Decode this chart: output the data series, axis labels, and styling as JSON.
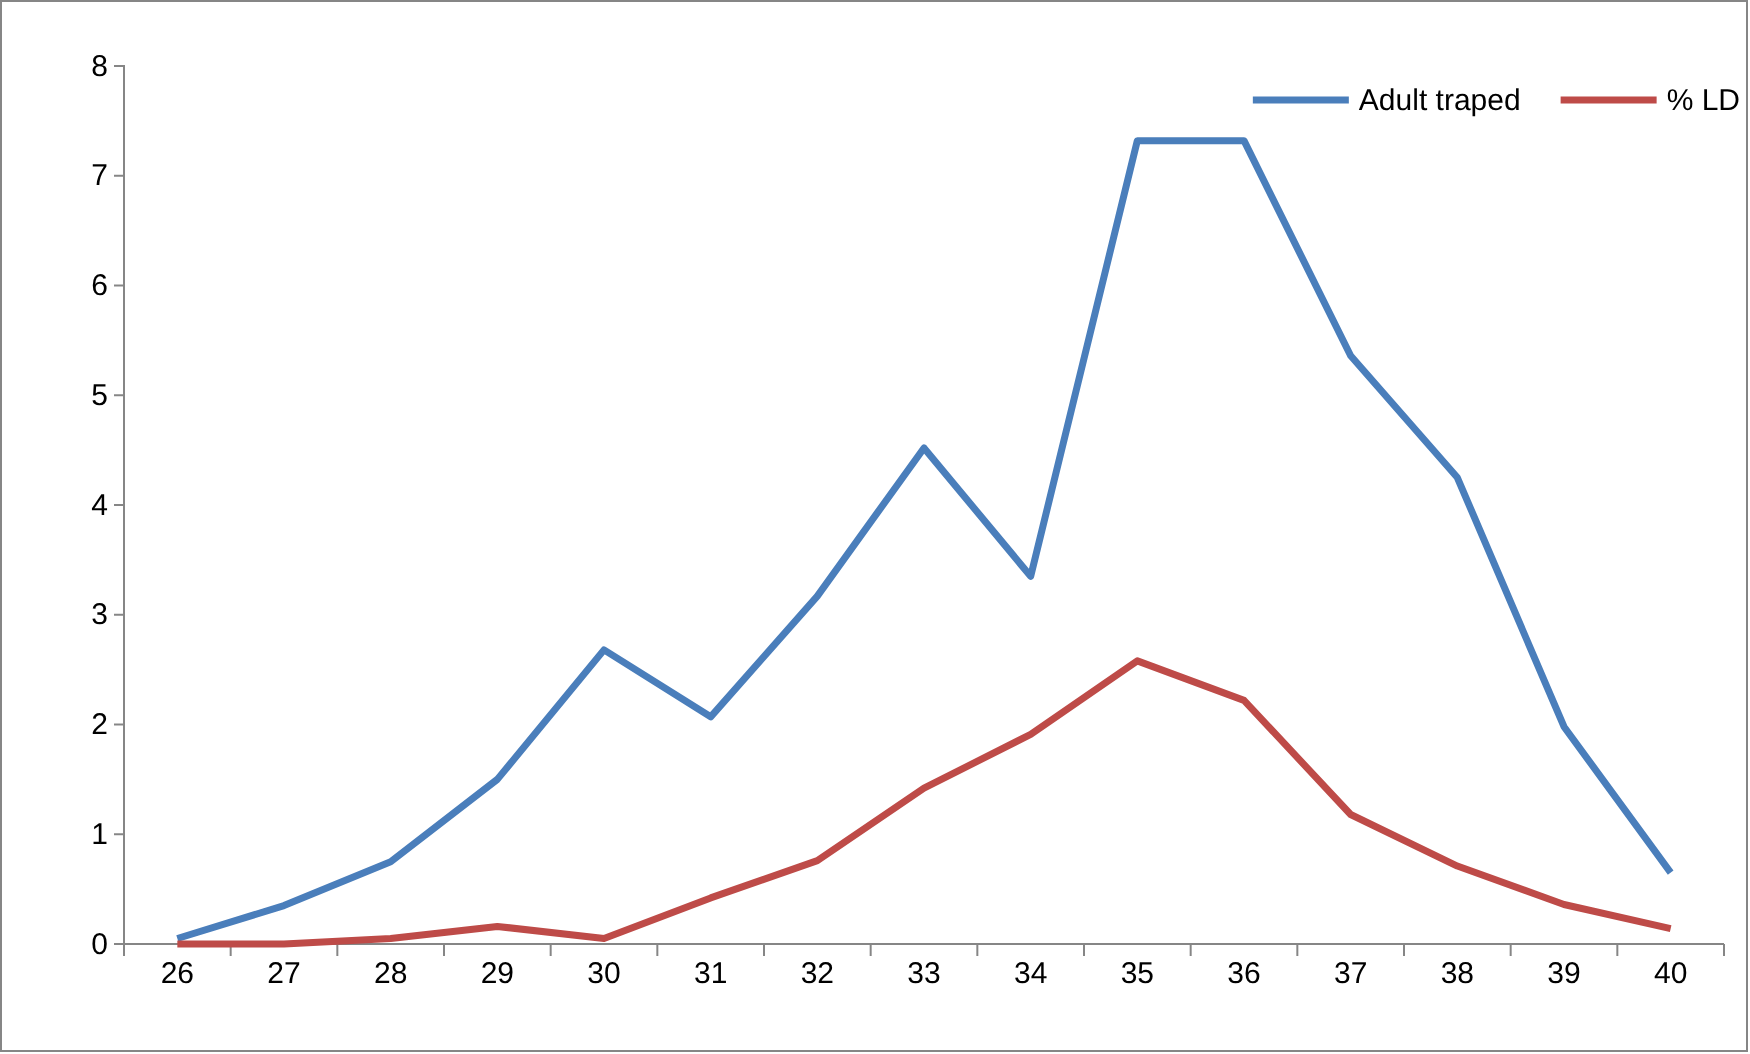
{
  "chart_data": {
    "type": "line",
    "categories": [
      "26",
      "27",
      "28",
      "29",
      "30",
      "31",
      "32",
      "33",
      "34",
      "35",
      "36",
      "37",
      "38",
      "39",
      "40"
    ],
    "series": [
      {
        "name": "Adult traped",
        "color": "#4a7ebb",
        "values": [
          0.05,
          0.35,
          0.75,
          1.5,
          2.68,
          2.07,
          3.17,
          4.52,
          3.35,
          7.32,
          7.32,
          5.36,
          4.25,
          1.98,
          0.65
        ]
      },
      {
        "name": "% LD",
        "color": "#be4b48",
        "values": [
          0,
          0,
          0.05,
          0.16,
          0.05,
          0.42,
          0.76,
          1.42,
          1.91,
          2.58,
          2.22,
          1.18,
          0.71,
          0.36,
          0.14
        ]
      }
    ],
    "ylim": [
      0,
      8
    ],
    "yticks": [
      0,
      1,
      2,
      3,
      4,
      5,
      6,
      7,
      8
    ],
    "grid": false,
    "legend": "top right",
    "marker": "none",
    "line_style": "solid"
  }
}
